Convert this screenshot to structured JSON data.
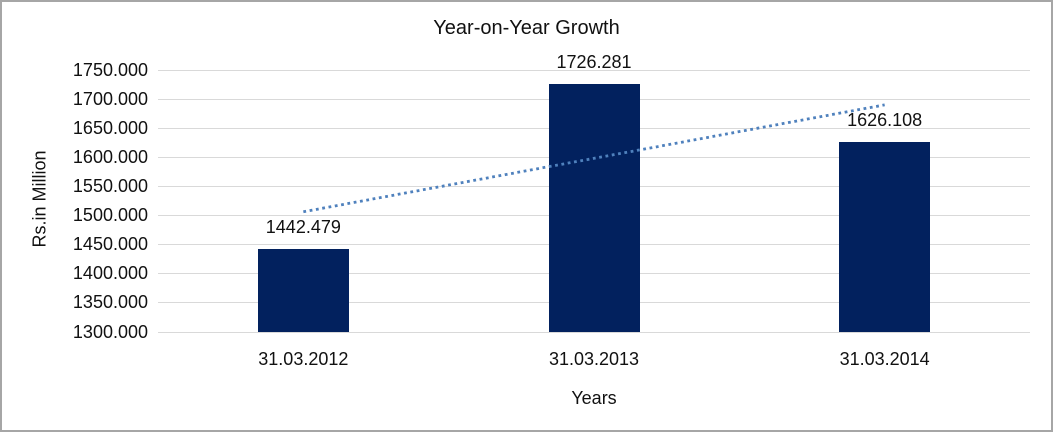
{
  "chart_data": {
    "type": "bar",
    "title": "Year-on-Year Growth",
    "xlabel": "Years",
    "ylabel": "Rs.in Million",
    "categories": [
      "31.03.2012",
      "31.03.2013",
      "31.03.2014"
    ],
    "values": [
      1442.479,
      1726.281,
      1626.108
    ],
    "data_labels": [
      "1442.479",
      "1726.281",
      "1626.108"
    ],
    "ylim": [
      1300,
      1750
    ],
    "ytick_step": 50,
    "yticks": [
      "1750.000",
      "1700.000",
      "1650.000",
      "1600.000",
      "1550.000",
      "1500.000",
      "1450.000",
      "1400.000",
      "1350.000",
      "1300.000"
    ],
    "grid": true,
    "legend": "none",
    "trendline": {
      "type": "linear",
      "style": "dotted",
      "spans": "first-to-last-category-center"
    }
  },
  "colors": {
    "bar": "#02215E",
    "trendline": "#4F81BD",
    "gridline": "#D9D9D9",
    "text": "#111111",
    "border": "#A6A6A6",
    "background": "#FFFFFF"
  }
}
